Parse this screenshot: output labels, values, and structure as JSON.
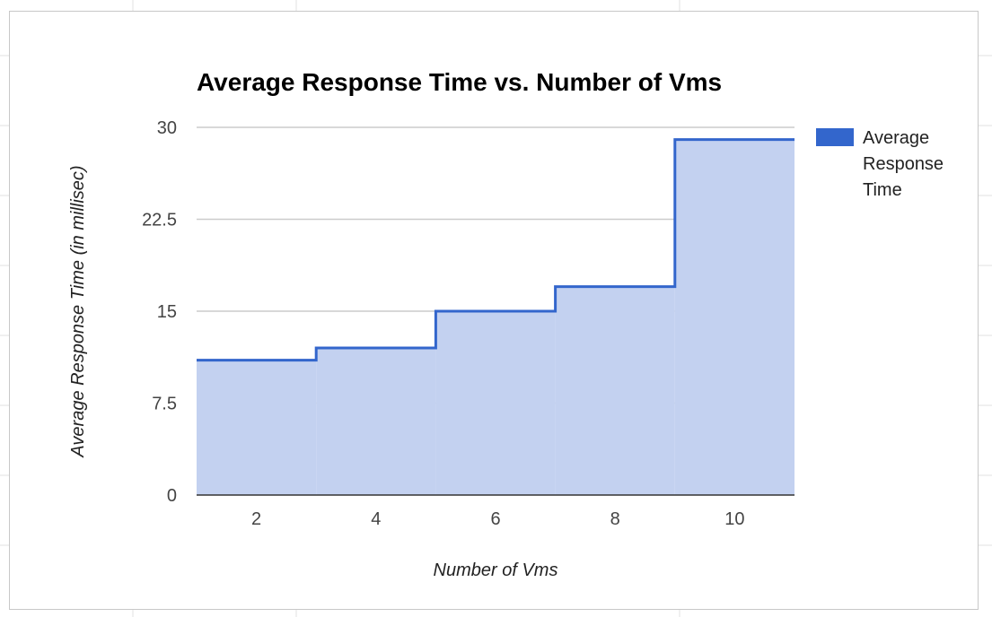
{
  "chart_data": {
    "type": "area",
    "step": true,
    "title": "Average Response Time vs. Number of Vms",
    "xlabel": "Number of Vms",
    "ylabel": "Average Response Time (in millisec)",
    "xlim": [
      1,
      11
    ],
    "ylim": [
      0,
      30
    ],
    "x_ticks": [
      "2",
      "4",
      "6",
      "8",
      "10"
    ],
    "y_ticks": [
      "0",
      "7.5",
      "15",
      "22.5",
      "30"
    ],
    "grid": true,
    "legend": "right",
    "series": [
      {
        "name": "Average Response Time",
        "color": "#3366cc",
        "fill": "#c3d1f0",
        "x": [
          1,
          3,
          5,
          7,
          9,
          11
        ],
        "y": [
          11,
          12,
          15,
          17,
          29,
          29
        ]
      }
    ]
  }
}
